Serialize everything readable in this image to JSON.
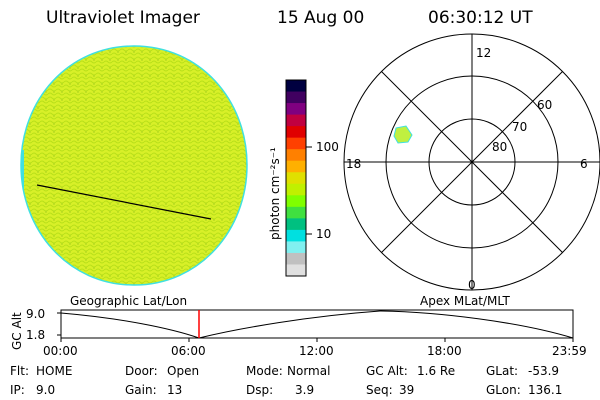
{
  "header": {
    "title": "Ultraviolet Imager",
    "date": "15 Aug 00",
    "time": "06:30:12 UT"
  },
  "colorbar": {
    "unit_label": "photon cm⁻²s⁻¹",
    "ticks": [
      "100",
      "10"
    ],
    "colors": [
      "#000040",
      "#400060",
      "#800080",
      "#c00040",
      "#e00000",
      "#ff4000",
      "#ff8000",
      "#ffb000",
      "#e0e000",
      "#c0f000",
      "#80ff00",
      "#40e040",
      "#00c080",
      "#00e0e0",
      "#80f0f0",
      "#c0c0c0",
      "#e0e0e0"
    ]
  },
  "polar_plot": {
    "mlt_labels": {
      "top": "12",
      "left": "18",
      "right": "6",
      "bottom": "0"
    },
    "lat_labels": [
      "60",
      "70",
      "80"
    ]
  },
  "timeline": {
    "left_label": "Geographic Lat/Lon",
    "right_label": "Apex MLat/MLT",
    "y_axis_title": "GC Alt",
    "y_ticks": [
      "9.0",
      "1.8"
    ],
    "x_ticks": [
      "00:00",
      "06:00",
      "12:00",
      "18:00",
      "23:59"
    ],
    "marker_time": "06:30:12",
    "colors": {
      "marker": "#ff0000",
      "curve": "#000000"
    }
  },
  "footer": {
    "row1": [
      {
        "key": "Flt:",
        "value": "HOME"
      },
      {
        "key": "Door:",
        "value": "Open"
      },
      {
        "key": "Mode:",
        "value": "Normal"
      },
      {
        "key": "GC Alt:",
        "value": "1.6 Re"
      },
      {
        "key": "GLat:",
        "value": "-53.9"
      }
    ],
    "row2": [
      {
        "key": "IP:",
        "value": "9.0"
      },
      {
        "key": "Gain:",
        "value": "13"
      },
      {
        "key": "Dsp:",
        "value": "3.9"
      },
      {
        "key": "Seq:",
        "value": "39"
      },
      {
        "key": "GLon:",
        "value": "136.1"
      }
    ]
  },
  "image_colors": {
    "disk": "#d8f028",
    "disk_speckle": "#b8e018",
    "disk_edge": "#40e0e0",
    "aurora": "#c0f040"
  }
}
